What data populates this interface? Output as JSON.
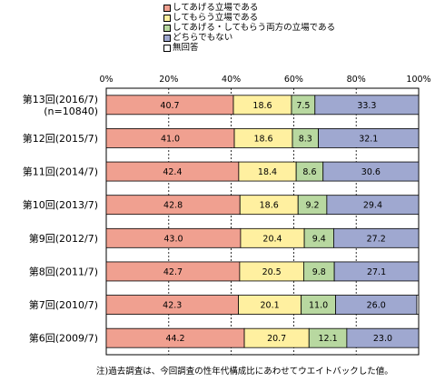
{
  "chart_data": {
    "type": "bar",
    "orientation": "horizontal",
    "stacked": true,
    "categories": [
      [
        "第13回(2016/7)",
        "(n=10840)"
      ],
      [
        "第12回(2015/7)"
      ],
      [
        "第11回(2014/7)"
      ],
      [
        "第10回(2013/7)"
      ],
      [
        "第9回(2012/7)"
      ],
      [
        "第8回(2011/7)"
      ],
      [
        "第7回(2010/7)"
      ],
      [
        "第6回(2009/7)"
      ]
    ],
    "series": [
      {
        "name": "してあげる立場である",
        "color": "#F0A090",
        "values": [
          40.7,
          41.0,
          42.4,
          42.8,
          43.0,
          42.7,
          42.3,
          44.2
        ]
      },
      {
        "name": "してもらう立場である",
        "color": "#FFF0A0",
        "values": [
          18.6,
          18.6,
          18.4,
          18.6,
          20.4,
          20.5,
          20.1,
          20.7
        ]
      },
      {
        "name": "してあげる・してもらう両方の立場である",
        "color": "#B8D8A0",
        "values": [
          7.5,
          8.3,
          8.6,
          9.2,
          9.4,
          9.8,
          11.0,
          12.1
        ]
      },
      {
        "name": "どちらでもない",
        "color": "#9FA8D0",
        "values": [
          33.3,
          32.1,
          30.6,
          29.4,
          27.2,
          27.1,
          26.0,
          23.0
        ]
      },
      {
        "name": "無回答",
        "color": "#FFFFFF",
        "values": [
          null,
          null,
          null,
          null,
          null,
          null,
          null,
          null
        ]
      }
    ],
    "xaxis": {
      "ticks": [
        "0%",
        "20%",
        "40%",
        "60%",
        "80%",
        "100%"
      ],
      "range": [
        0,
        100
      ]
    },
    "legend_position": "top",
    "grid": true
  },
  "note": "注)過去調査は、今回調査の性年代構成比にあわせてウエイトバックした値。"
}
